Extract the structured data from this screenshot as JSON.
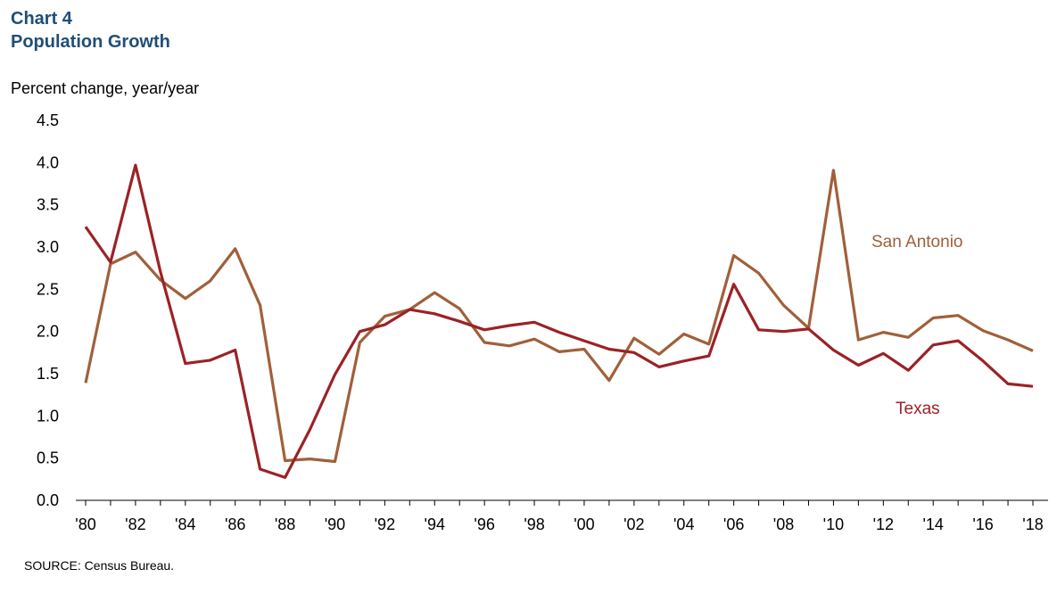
{
  "header": {
    "chart_number": "Chart 4",
    "title": "Population Growth"
  },
  "source": "SOURCE:  Census Bureau.",
  "colors": {
    "title": "#1f4e79",
    "texas": "#9b2226",
    "san_antonio": "#a0603a"
  },
  "chart_data": {
    "type": "line",
    "title": "Population Growth",
    "xlabel": "",
    "ylabel": "Percent change,  year/year",
    "ylim": [
      0,
      4.5
    ],
    "yticks": [
      "0.0",
      "0.5",
      "1.0",
      "1.5",
      "2.0",
      "2.5",
      "3.0",
      "3.5",
      "4.0",
      "4.5"
    ],
    "xtick_labels": [
      "'80",
      "'82",
      "'84",
      "'86",
      "'88",
      "'90",
      "'92",
      "'94",
      "'96",
      "'98",
      "'00",
      "'02",
      "'04",
      "'06",
      "'08",
      "'10",
      "'12",
      "'14",
      "'16",
      "'18"
    ],
    "x": [
      1980,
      1981,
      1982,
      1983,
      1984,
      1985,
      1986,
      1987,
      1988,
      1989,
      1990,
      1991,
      1992,
      1993,
      1994,
      1995,
      1996,
      1997,
      1998,
      1999,
      2000,
      2001,
      2002,
      2003,
      2004,
      2005,
      2006,
      2007,
      2008,
      2009,
      2010,
      2011,
      2012,
      2013,
      2014,
      2015,
      2016,
      2017,
      2018
    ],
    "series": [
      {
        "name": "San Antonio",
        "values": [
          1.39,
          2.8,
          2.94,
          2.61,
          2.39,
          2.6,
          2.98,
          2.31,
          0.47,
          0.49,
          0.46,
          1.87,
          2.18,
          2.26,
          2.46,
          2.27,
          1.87,
          1.83,
          1.91,
          1.76,
          1.79,
          1.42,
          1.92,
          1.73,
          1.97,
          1.85,
          2.9,
          2.69,
          2.31,
          2.04,
          3.91,
          1.9,
          1.99,
          1.93,
          2.16,
          2.19,
          2.01,
          1.9,
          1.77
        ]
      },
      {
        "name": "Texas",
        "values": [
          3.24,
          2.82,
          3.97,
          2.71,
          1.62,
          1.66,
          1.78,
          0.37,
          0.27,
          0.84,
          1.49,
          2.0,
          2.08,
          2.26,
          2.21,
          2.12,
          2.02,
          2.07,
          2.11,
          1.99,
          1.89,
          1.79,
          1.75,
          1.58,
          1.65,
          1.71,
          2.56,
          2.02,
          2.0,
          2.03,
          1.78,
          1.6,
          1.74,
          1.54,
          1.84,
          1.89,
          1.65,
          1.38,
          1.35
        ]
      }
    ]
  }
}
